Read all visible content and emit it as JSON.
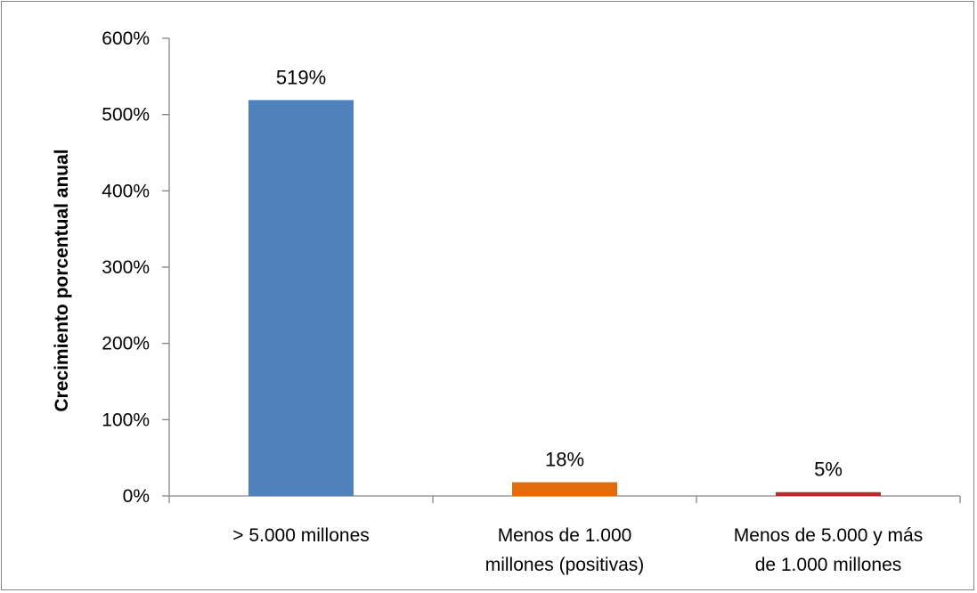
{
  "chart_data": {
    "type": "bar",
    "title": "",
    "xlabel": "",
    "ylabel": "Crecimiento porcentual anual",
    "ylim": [
      0,
      600
    ],
    "yticks": [
      0,
      100,
      200,
      300,
      400,
      500,
      600
    ],
    "ytick_labels": [
      "0%",
      "100%",
      "200%",
      "300%",
      "400%",
      "500%",
      "600%"
    ],
    "categories": [
      [
        "> 5.000 millones"
      ],
      [
        "Menos de 1.000",
        "millones (positivas)"
      ],
      [
        "Menos de 5.000 y más",
        "de 1.000 millones"
      ]
    ],
    "values": [
      519,
      18,
      5
    ],
    "data_labels": [
      "519%",
      "18%",
      "5%"
    ],
    "colors": [
      "#4F81BD",
      "#E36C0A",
      "#C0282D"
    ],
    "grid": false,
    "legend": "none"
  }
}
